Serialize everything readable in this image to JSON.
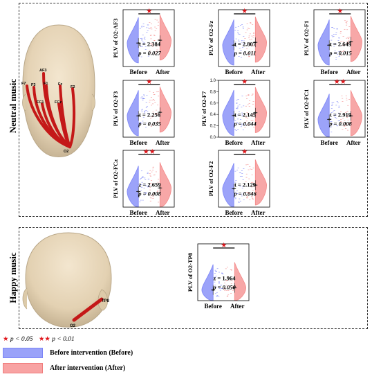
{
  "sections": {
    "neutral": {
      "label": "Neutral music"
    },
    "happy": {
      "label": "Happy music"
    }
  },
  "head_labels": {
    "neutral": [
      "AF3",
      "F7",
      "F3",
      "F1",
      "Fz",
      "F2",
      "FC1",
      "FCz",
      "O2"
    ],
    "happy": [
      "TP8",
      "O2"
    ]
  },
  "colors": {
    "before": "#7b84f7",
    "after": "#f48a8a",
    "star": "#e0151b",
    "electrode_line": "#c41818"
  },
  "x_labels": [
    "Before",
    "After"
  ],
  "legend": {
    "sig1_star": "★",
    "sig1_text": "p < 0.05",
    "sig2_star": "★★",
    "sig2_text": "p < 0.01",
    "before": "Before intervention (Before)",
    "after": "After intervention (After)"
  },
  "chart_data": [
    {
      "type": "violin",
      "section": "neutral",
      "ylabel": "PLV of O2-AF3",
      "stat": "t = 2.384",
      "p": "p = 0.027",
      "sig": "★",
      "before_median": 0.33,
      "after_median": 0.37
    },
    {
      "type": "violin",
      "section": "neutral",
      "ylabel": "PLV of O2-Fz",
      "stat": "t = 2.807",
      "p": "p = 0.011",
      "sig": "★",
      "before_median": 0.3,
      "after_median": 0.34
    },
    {
      "type": "violin",
      "section": "neutral",
      "ylabel": "PLV of O2-F1",
      "stat": "t = 2.649",
      "p": "p = 0.015",
      "sig": "★",
      "before_median": 0.3,
      "after_median": 0.35
    },
    {
      "type": "violin",
      "section": "neutral",
      "ylabel": "PLV of O2-F3",
      "stat": "t = 2.256",
      "p": "p = 0.035",
      "sig": "★",
      "before_median": 0.3,
      "after_median": 0.35
    },
    {
      "type": "violin",
      "section": "neutral",
      "ylabel": "PLV of O2-F7",
      "stat": "t = 2.145",
      "p": "p = 0.044",
      "sig": "★",
      "before_median": 0.38,
      "after_median": 0.43,
      "ylim": [
        0.0,
        1.0
      ],
      "yticks": [
        "0.0",
        "0.2",
        "0.4",
        "0.6",
        "0.8",
        "1.0"
      ]
    },
    {
      "type": "violin",
      "section": "neutral",
      "ylabel": "PLV of O2-FC1",
      "stat": "t = 2.919",
      "p": "p = 0.008",
      "sig": "★★",
      "before_median": 0.25,
      "after_median": 0.3
    },
    {
      "type": "violin",
      "section": "neutral",
      "ylabel": "PLV of O2-FCz",
      "stat": "z = 2.659",
      "p": "p = 0.008",
      "sig": "★★",
      "before_median": 0.22,
      "after_median": 0.27
    },
    {
      "type": "violin",
      "section": "neutral",
      "ylabel": "PLV of O2-F2",
      "stat": "t = 2.129",
      "p": "p = 0.046",
      "sig": "★",
      "before_median": 0.26,
      "after_median": 0.31
    },
    {
      "type": "violin",
      "section": "happy",
      "ylabel": "PLV of O2-TP8",
      "stat": "z = 1.964",
      "p": "p = 0.050",
      "sig": "★",
      "before_median": 0.15,
      "after_median": 0.18
    }
  ]
}
